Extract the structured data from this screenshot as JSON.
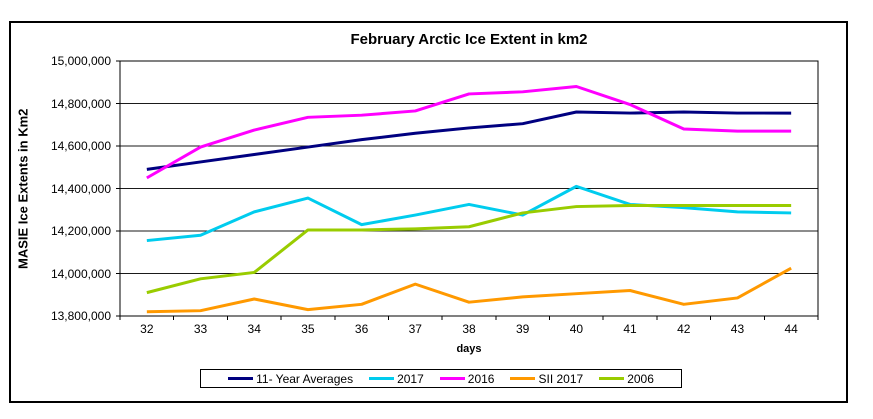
{
  "chart_data": {
    "type": "line",
    "title": "February Arctic Ice Extent in km2",
    "xlabel": "days",
    "ylabel": "MASIE Ice Extents in Km2",
    "x_categories": [
      "32",
      "33",
      "34",
      "35",
      "36",
      "37",
      "38",
      "39",
      "40",
      "41",
      "42",
      "43",
      "44"
    ],
    "ylim": [
      13800000,
      15000000
    ],
    "ytick_interval": 200000,
    "ytick_labels": [
      "13,800,000",
      "14,000,000",
      "14,200,000",
      "14,400,000",
      "14,600,000",
      "14,800,000",
      "15,000,000"
    ],
    "grid": true,
    "legend_position": "bottom",
    "series": [
      {
        "name": "11- Year Averages",
        "color": "#000080",
        "values": [
          14490000,
          14525000,
          14560000,
          14595000,
          14630000,
          14660000,
          14685000,
          14705000,
          14760000,
          14755000,
          14760000,
          14755000,
          14755000
        ]
      },
      {
        "name": "2017",
        "color": "#00CCEE",
        "values": [
          14155000,
          14180000,
          14290000,
          14355000,
          14230000,
          14275000,
          14325000,
          14275000,
          14410000,
          14325000,
          14310000,
          14290000,
          14285000
        ]
      },
      {
        "name": "2016",
        "color": "#FF00FF",
        "values": [
          14450000,
          14595000,
          14675000,
          14735000,
          14745000,
          14765000,
          14845000,
          14855000,
          14880000,
          14795000,
          14680000,
          14670000,
          14670000
        ]
      },
      {
        "name": "SII 2017",
        "color": "#FF9900",
        "values": [
          13820000,
          13825000,
          13880000,
          13830000,
          13855000,
          13950000,
          13865000,
          13890000,
          13905000,
          13920000,
          13855000,
          13885000,
          14025000
        ]
      },
      {
        "name": "2006",
        "color": "#99CC00",
        "values": [
          13910000,
          13975000,
          14005000,
          14205000,
          14205000,
          14210000,
          14220000,
          14285000,
          14315000,
          14320000,
          14320000,
          14320000,
          14320000
        ]
      }
    ]
  }
}
